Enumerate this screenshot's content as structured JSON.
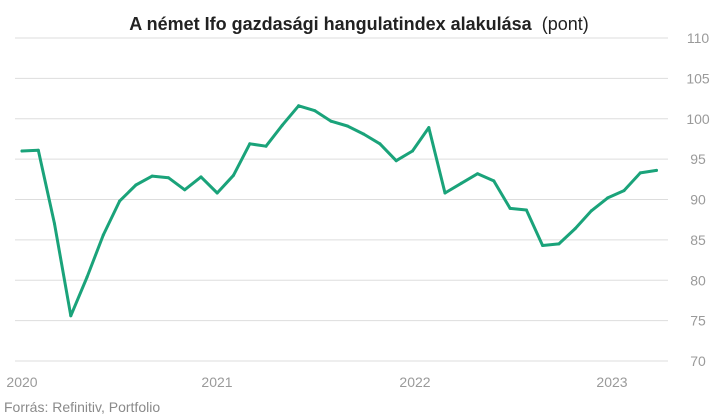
{
  "chart_data": {
    "type": "line",
    "title": "A német Ifo gazdasági hangulatindex alakulása",
    "title_unit": "(pont)",
    "source": "Forrás: Refinitiv, Portfolio",
    "ylim": [
      70,
      110
    ],
    "yticks": [
      "110",
      "105",
      "100",
      "95",
      "90",
      "85",
      "80",
      "75",
      "70"
    ],
    "xticks": [
      "2020",
      "2021",
      "2022",
      "2023"
    ],
    "grid": true,
    "y_axis_position": "right",
    "line_color": "#1aa37a",
    "series": [
      {
        "x": [
          "2020-01",
          "2020-02",
          "2020-03",
          "2020-04",
          "2020-05",
          "2020-06",
          "2020-07",
          "2020-08",
          "2020-09",
          "2020-10",
          "2020-11",
          "2020-12",
          "2021-01",
          "2021-02",
          "2021-03",
          "2021-04",
          "2021-05",
          "2021-06",
          "2021-07",
          "2021-08",
          "2021-09",
          "2021-10",
          "2021-11",
          "2021-12",
          "2022-01",
          "2022-02",
          "2022-03",
          "2022-04",
          "2022-05",
          "2022-06",
          "2022-07",
          "2022-08",
          "2022-09",
          "2022-10",
          "2022-11",
          "2022-12",
          "2023-01",
          "2023-02",
          "2023-03",
          "2023-04"
        ],
        "values": [
          96.0,
          96.1,
          87.0,
          75.6,
          80.4,
          85.6,
          89.8,
          91.8,
          92.9,
          92.7,
          91.2,
          92.8,
          90.8,
          93.0,
          96.9,
          96.6,
          99.2,
          101.6,
          101.0,
          99.7,
          99.1,
          98.1,
          96.9,
          94.8,
          96.0,
          98.9,
          90.8,
          92.0,
          93.2,
          92.3,
          88.9,
          88.7,
          84.3,
          84.5,
          86.4,
          88.6,
          90.2,
          91.1,
          93.3,
          93.6
        ]
      }
    ]
  }
}
